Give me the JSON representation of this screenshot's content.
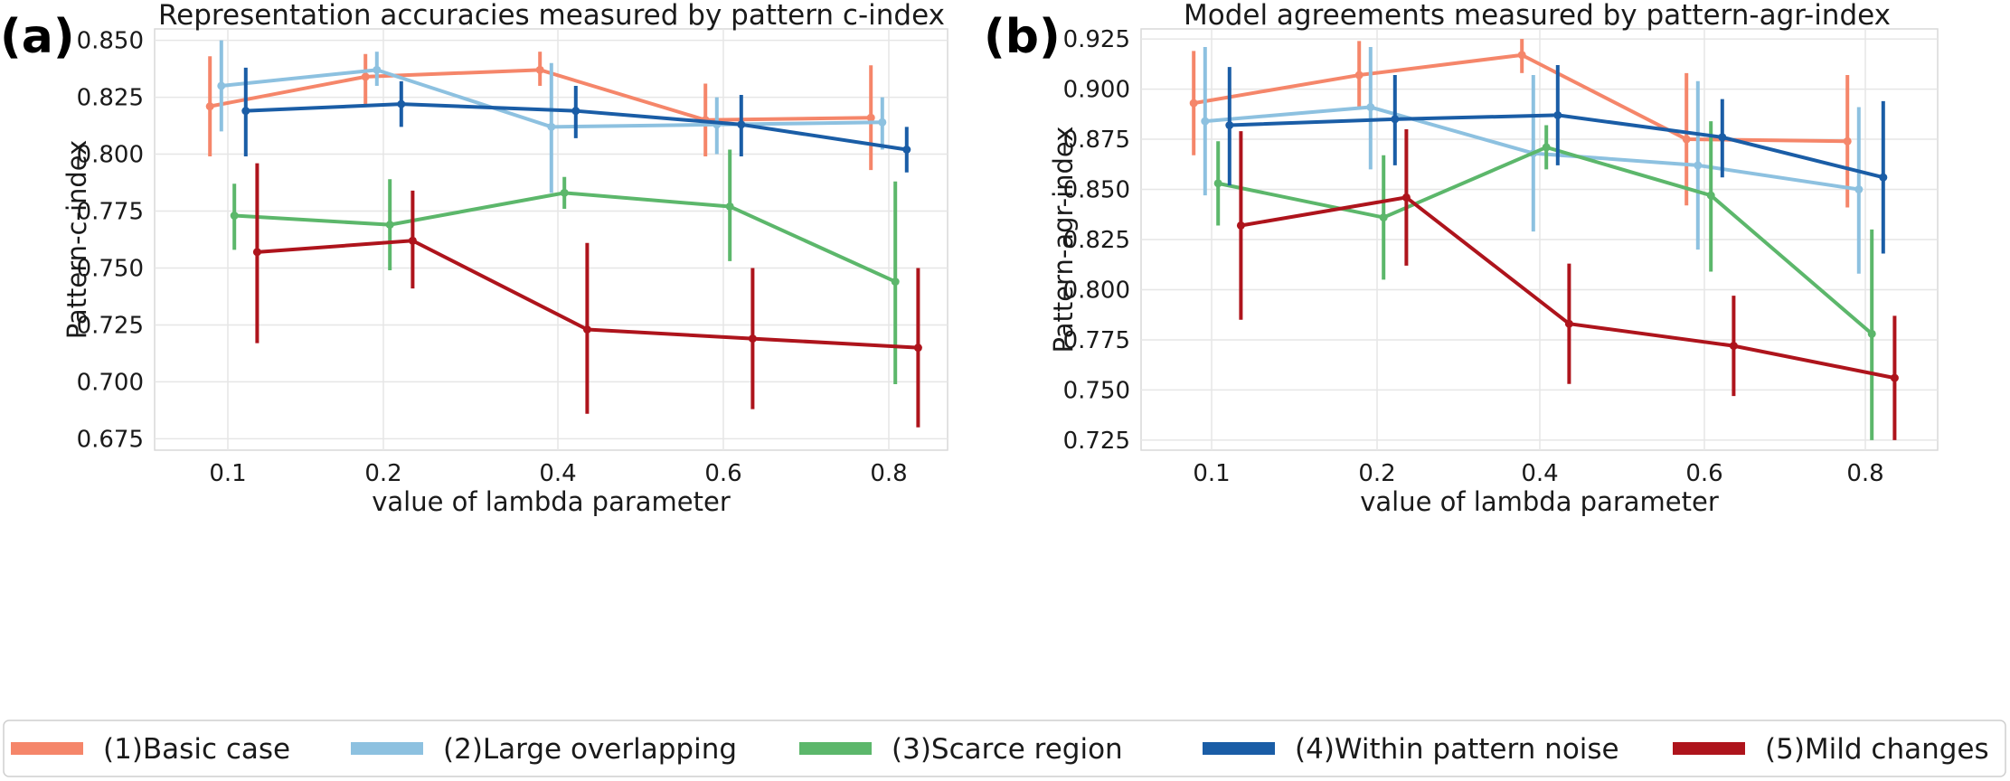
{
  "legend": [
    {
      "label": "(1)Basic case",
      "color": "#f5866a"
    },
    {
      "label": "(2)Large overlapping",
      "color": "#8dc1e0"
    },
    {
      "label": "(3)Scarce region",
      "color": "#5cb76b"
    },
    {
      "label": "(4)Within pattern noise",
      "color": "#1a5da6"
    },
    {
      "label": "(5)Mild changes",
      "color": "#ae141c"
    }
  ],
  "chart_data": [
    {
      "panel_label": "(a)",
      "type": "line",
      "title": "Representation accuracies measured by pattern c-index",
      "xlabel": "value of lambda parameter",
      "ylabel": "Pattern-c-index",
      "categories": [
        "0.1",
        "0.2",
        "0.4",
        "0.6",
        "0.8"
      ],
      "ylim": [
        0.67,
        0.855
      ],
      "yticks": [
        "0.675",
        "0.700",
        "0.725",
        "0.750",
        "0.775",
        "0.800",
        "0.825",
        "0.850"
      ],
      "series": [
        {
          "name": "(1)Basic case",
          "values": [
            0.821,
            0.834,
            0.837,
            0.815,
            0.816
          ],
          "err_low": [
            0.799,
            0.822,
            0.83,
            0.799,
            0.793
          ],
          "err_high": [
            0.843,
            0.844,
            0.845,
            0.831,
            0.839
          ]
        },
        {
          "name": "(2)Large overlapping",
          "values": [
            0.83,
            0.837,
            0.812,
            0.813,
            0.814
          ],
          "err_low": [
            0.81,
            0.83,
            0.783,
            0.8,
            0.802
          ],
          "err_high": [
            0.85,
            0.845,
            0.84,
            0.825,
            0.825
          ]
        },
        {
          "name": "(3)Scarce region",
          "values": [
            0.773,
            0.769,
            0.783,
            0.777,
            0.744
          ],
          "err_low": [
            0.758,
            0.749,
            0.776,
            0.753,
            0.699
          ],
          "err_high": [
            0.787,
            0.789,
            0.79,
            0.802,
            0.788
          ]
        },
        {
          "name": "(4)Within pattern noise",
          "values": [
            0.819,
            0.822,
            0.819,
            0.813,
            0.802
          ],
          "err_low": [
            0.799,
            0.812,
            0.807,
            0.799,
            0.792
          ],
          "err_high": [
            0.838,
            0.832,
            0.83,
            0.826,
            0.812
          ]
        },
        {
          "name": "(5)Mild changes",
          "values": [
            0.757,
            0.762,
            0.723,
            0.719,
            0.715
          ],
          "err_low": [
            0.717,
            0.741,
            0.686,
            0.688,
            0.68
          ],
          "err_high": [
            0.796,
            0.784,
            0.761,
            0.75,
            0.75
          ]
        }
      ]
    },
    {
      "panel_label": "(b)",
      "type": "line",
      "title": "Model agreements measured by pattern-agr-index",
      "xlabel": "value of lambda parameter",
      "ylabel": "Pattern-agr-index",
      "categories": [
        "0.1",
        "0.2",
        "0.4",
        "0.6",
        "0.8"
      ],
      "ylim": [
        0.72,
        0.93
      ],
      "yticks": [
        "0.725",
        "0.750",
        "0.775",
        "0.800",
        "0.825",
        "0.850",
        "0.875",
        "0.900",
        "0.925"
      ],
      "series": [
        {
          "name": "(1)Basic case",
          "values": [
            0.893,
            0.907,
            0.917,
            0.875,
            0.874
          ],
          "err_low": [
            0.867,
            0.89,
            0.908,
            0.842,
            0.841
          ],
          "err_high": [
            0.919,
            0.924,
            0.925,
            0.908,
            0.907
          ]
        },
        {
          "name": "(2)Large overlapping",
          "values": [
            0.884,
            0.891,
            0.868,
            0.862,
            0.85
          ],
          "err_low": [
            0.847,
            0.86,
            0.829,
            0.82,
            0.808
          ],
          "err_high": [
            0.921,
            0.921,
            0.907,
            0.904,
            0.891
          ]
        },
        {
          "name": "(3)Scarce region",
          "values": [
            0.853,
            0.836,
            0.871,
            0.847,
            0.778
          ],
          "err_low": [
            0.832,
            0.805,
            0.86,
            0.809,
            0.725
          ],
          "err_high": [
            0.874,
            0.867,
            0.882,
            0.884,
            0.83
          ]
        },
        {
          "name": "(4)Within pattern noise",
          "values": [
            0.882,
            0.885,
            0.887,
            0.876,
            0.856
          ],
          "err_low": [
            0.852,
            0.862,
            0.862,
            0.856,
            0.818
          ],
          "err_high": [
            0.911,
            0.907,
            0.912,
            0.895,
            0.894
          ]
        },
        {
          "name": "(5)Mild changes",
          "values": [
            0.832,
            0.846,
            0.783,
            0.772,
            0.756
          ],
          "err_low": [
            0.785,
            0.812,
            0.753,
            0.747,
            0.725
          ],
          "err_high": [
            0.879,
            0.88,
            0.813,
            0.797,
            0.787
          ]
        }
      ]
    }
  ]
}
